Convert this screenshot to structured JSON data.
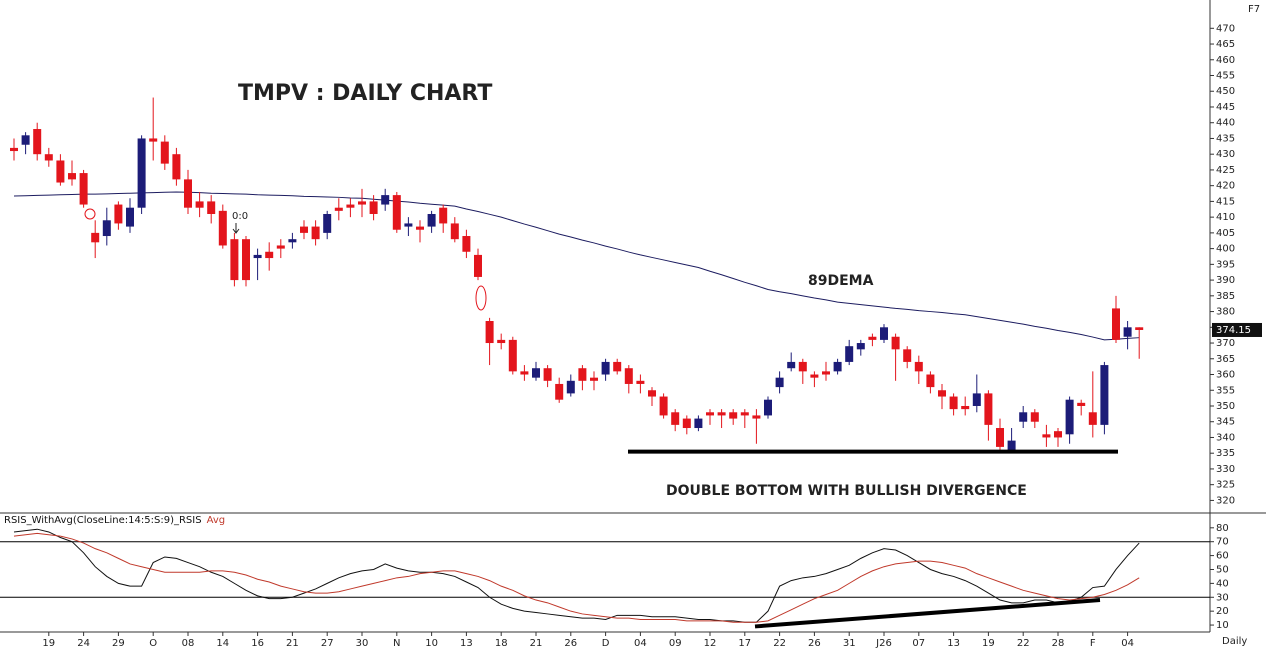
{
  "chart_data": [
    {
      "type": "candlestick",
      "title": "TMPV : DAILY CHART",
      "corner_label": "F7",
      "ylim": [
        316,
        472
      ],
      "yticks": [
        320,
        325,
        330,
        335,
        340,
        345,
        350,
        355,
        360,
        365,
        370,
        375,
        380,
        385,
        390,
        395,
        400,
        405,
        410,
        415,
        420,
        425,
        430,
        435,
        440,
        445,
        450,
        455,
        460,
        465,
        470
      ],
      "up_color": "#1c1c78",
      "down_color": "#e3151c",
      "open": [
        432,
        433,
        438,
        430,
        428,
        424,
        424,
        405,
        404,
        414,
        407,
        413,
        435,
        434,
        430,
        422,
        415,
        415,
        412,
        403,
        403,
        397,
        399,
        401,
        402,
        407,
        407,
        405,
        413,
        414,
        415,
        415,
        414,
        417,
        407,
        407,
        407,
        413,
        408,
        404,
        398,
        377,
        371,
        371,
        361,
        359,
        362,
        357,
        354,
        362,
        359,
        360,
        364,
        362,
        358,
        355,
        353,
        348,
        346,
        343,
        348,
        348,
        348,
        348,
        347,
        347,
        356,
        362,
        364,
        360,
        361,
        361,
        364,
        368,
        372,
        371,
        372,
        368,
        364,
        360,
        355,
        353,
        350,
        350,
        354,
        343,
        336,
        345,
        348,
        341,
        342,
        341,
        351,
        348,
        344,
        381,
        372,
        375
      ],
      "high": [
        435,
        437,
        440,
        432,
        430,
        428,
        425,
        409,
        413,
        415,
        416,
        436,
        448,
        436,
        432,
        425,
        418,
        417,
        414,
        405,
        404,
        400,
        402,
        403,
        405,
        409,
        409,
        412,
        416,
        416,
        419,
        417,
        419,
        418,
        410,
        409,
        412,
        414,
        410,
        406,
        400,
        378,
        373,
        372,
        363,
        364,
        363,
        359,
        360,
        363,
        361,
        365,
        365,
        363,
        360,
        356,
        354,
        349,
        347,
        347,
        349,
        349,
        349,
        349,
        349,
        353,
        361,
        367,
        365,
        361,
        364,
        365,
        371,
        371,
        373,
        376,
        373,
        369,
        366,
        361,
        357,
        354,
        353,
        360,
        355,
        346,
        343,
        350,
        349,
        344,
        343,
        353,
        352,
        361,
        364,
        385,
        377,
        375
      ],
      "low": [
        428,
        430,
        428,
        426,
        420,
        420,
        413,
        397,
        401,
        406,
        405,
        411,
        428,
        425,
        420,
        411,
        410,
        408,
        400,
        388,
        388,
        390,
        393,
        397,
        400,
        403,
        401,
        403,
        409,
        410,
        410,
        409,
        412,
        405,
        404,
        402,
        405,
        405,
        402,
        397,
        390,
        363,
        368,
        360,
        358,
        358,
        356,
        351,
        353,
        355,
        355,
        358,
        360,
        354,
        354,
        350,
        346,
        342,
        341,
        342,
        344,
        343,
        344,
        343,
        338,
        346,
        354,
        361,
        357,
        356,
        358,
        360,
        363,
        366,
        369,
        370,
        358,
        362,
        357,
        354,
        349,
        347,
        347,
        348,
        339,
        336,
        336,
        343,
        343,
        337,
        337,
        338,
        347,
        340,
        341,
        370,
        368,
        365
      ],
      "close": [
        431,
        436,
        430,
        428,
        421,
        422,
        414,
        402,
        409,
        408,
        413,
        435,
        434,
        427,
        422,
        413,
        413,
        411,
        401,
        390,
        390,
        398,
        397,
        400,
        403,
        405,
        403,
        411,
        412,
        413,
        414,
        411,
        417,
        406,
        408,
        406,
        411,
        408,
        403,
        399,
        391,
        370,
        370,
        361,
        360,
        362,
        358,
        352,
        358,
        358,
        358,
        364,
        361,
        357,
        357,
        353,
        347,
        344,
        343,
        346,
        347,
        347,
        346,
        347,
        346,
        352,
        359,
        364,
        361,
        359,
        360,
        364,
        369,
        370,
        371,
        375,
        368,
        364,
        361,
        356,
        353,
        349,
        349,
        354,
        344,
        337,
        339,
        348,
        345,
        340,
        340,
        352,
        350,
        344,
        363,
        371,
        375,
        374.15
      ],
      "series": [
        {
          "name": "89DEMA",
          "color": "#1c1c60",
          "values": [
            416.7,
            416.8,
            416.9,
            417.0,
            417.1,
            417.2,
            417.3,
            417.3,
            417.4,
            417.5,
            417.6,
            417.7,
            417.8,
            417.9,
            418.0,
            417.9,
            417.8,
            417.6,
            417.5,
            417.4,
            417.3,
            417.1,
            417.0,
            416.9,
            416.8,
            416.6,
            416.5,
            416.4,
            416.3,
            416.1,
            416.0,
            415.7,
            415.4,
            415.1,
            414.8,
            414.4,
            414.1,
            413.8,
            413.5,
            412.6,
            411.8,
            410.9,
            410.0,
            408.9,
            407.8,
            406.8,
            405.7,
            404.6,
            403.7,
            402.7,
            401.8,
            400.8,
            399.9,
            398.9,
            398.0,
            397.2,
            396.4,
            395.6,
            394.8,
            394.0,
            392.8,
            391.7,
            390.5,
            389.3,
            388.2,
            387.0,
            386.3,
            385.7,
            385.0,
            384.3,
            383.7,
            383.0,
            382.6,
            382.2,
            381.8,
            381.4,
            381.0,
            380.7,
            380.3,
            380.0,
            379.7,
            379.3,
            379.0,
            378.4,
            377.8,
            377.2,
            376.6,
            376.0,
            375.3,
            374.7,
            374.0,
            373.4,
            372.7,
            371.9,
            371.0,
            371.2,
            371.5,
            371.7
          ]
        }
      ],
      "last_price": 374.15,
      "support_level": 335.5,
      "annotations": [
        "DOUBLE BOTTOM WITH BULLISH DIVERGENCE",
        "0:0"
      ]
    },
    {
      "type": "line",
      "ylim": [
        5,
        88.5
      ],
      "yticks": [
        10,
        20,
        30,
        40,
        50,
        60,
        70,
        80
      ],
      "levels": [
        30,
        70
      ],
      "x_label": "Daily",
      "categories": [
        null,
        null,
        null,
        "19",
        null,
        null,
        "24",
        null,
        null,
        "29",
        null,
        null,
        "O",
        null,
        null,
        "08",
        null,
        null,
        "14",
        null,
        null,
        "16",
        null,
        null,
        "21",
        null,
        null,
        "27",
        null,
        null,
        "30",
        null,
        null,
        "N",
        null,
        null,
        "10",
        null,
        null,
        "13",
        null,
        null,
        "18",
        null,
        null,
        "21",
        null,
        null,
        "26",
        null,
        null,
        "D",
        null,
        null,
        "04",
        null,
        null,
        "09",
        null,
        null,
        "12",
        null,
        null,
        "17",
        null,
        null,
        "22",
        null,
        null,
        "26",
        null,
        null,
        "31",
        null,
        null,
        "J26",
        null,
        null,
        "07",
        null,
        null,
        "13",
        null,
        null,
        "19",
        null,
        null,
        "22",
        null,
        null,
        "28",
        null,
        null,
        "F",
        null,
        null,
        "04",
        null
      ],
      "series": [
        {
          "name": "RSIS_WithAvg(CloseLine:14:5:S:9)_RSIS",
          "color": "#111111",
          "values": [
            77,
            78,
            79,
            77,
            73,
            70,
            62,
            52,
            45,
            40,
            38,
            38,
            55,
            59,
            58,
            55,
            52,
            48,
            45,
            40,
            35,
            31,
            29,
            29,
            30,
            33,
            36,
            40,
            44,
            47,
            49,
            50,
            54,
            51,
            49,
            48,
            48,
            47,
            45,
            41,
            37,
            30,
            25,
            22,
            20,
            19,
            18,
            17,
            16,
            15,
            15,
            14,
            17,
            17,
            17,
            16,
            16,
            16,
            15,
            14,
            14,
            13,
            13,
            12,
            12,
            20,
            38,
            42,
            44,
            45,
            47,
            50,
            53,
            58,
            62,
            65,
            64,
            60,
            55,
            50,
            47,
            45,
            42,
            38,
            33,
            28,
            26,
            26,
            28,
            28,
            26,
            27,
            30,
            37,
            38,
            50,
            60,
            69
          ]
        },
        {
          "name": "Avg",
          "color": "#c0392b",
          "values": [
            74,
            75,
            76,
            75,
            74,
            72,
            69,
            65,
            62,
            58,
            54,
            52,
            50,
            48,
            48,
            48,
            48,
            49,
            49,
            48,
            46,
            43,
            41,
            38,
            36,
            34,
            33,
            33,
            34,
            36,
            38,
            40,
            42,
            44,
            45,
            47,
            48,
            49,
            49,
            47,
            45,
            42,
            38,
            35,
            31,
            28,
            26,
            23,
            20,
            18,
            17,
            16,
            15,
            15,
            14,
            14,
            14,
            14,
            13,
            13,
            13,
            13,
            12,
            12,
            12,
            13,
            17,
            21,
            25,
            29,
            32,
            35,
            40,
            45,
            49,
            52,
            54,
            55,
            56,
            56,
            55,
            53,
            51,
            47,
            44,
            41,
            38,
            35,
            33,
            31,
            29,
            28,
            29,
            30,
            32,
            35,
            39,
            44
          ]
        }
      ],
      "divergence_line": [
        9,
        28
      ]
    }
  ]
}
